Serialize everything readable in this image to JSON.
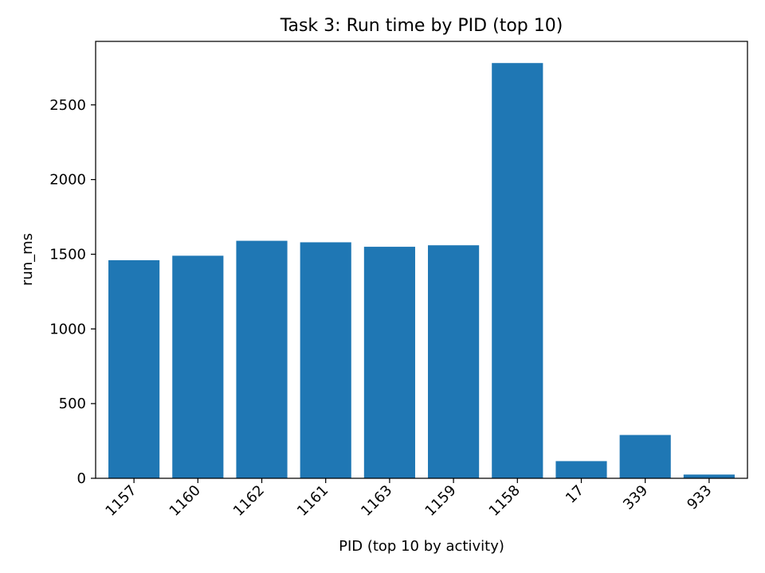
{
  "chart_data": {
    "type": "bar",
    "title": "Task 3: Run time by PID (top 10)",
    "xlabel": "PID (top 10 by activity)",
    "ylabel": "run_ms",
    "categories": [
      "1157",
      "1160",
      "1162",
      "1161",
      "1163",
      "1159",
      "1158",
      "17",
      "339",
      "933"
    ],
    "values": [
      1460,
      1490,
      1590,
      1580,
      1550,
      1560,
      2780,
      115,
      290,
      25
    ],
    "ylim": [
      0,
      2925
    ],
    "yticks": [
      0,
      500,
      1000,
      1500,
      2000,
      2500
    ],
    "grid": false,
    "bar_color": "#1f77b4"
  }
}
